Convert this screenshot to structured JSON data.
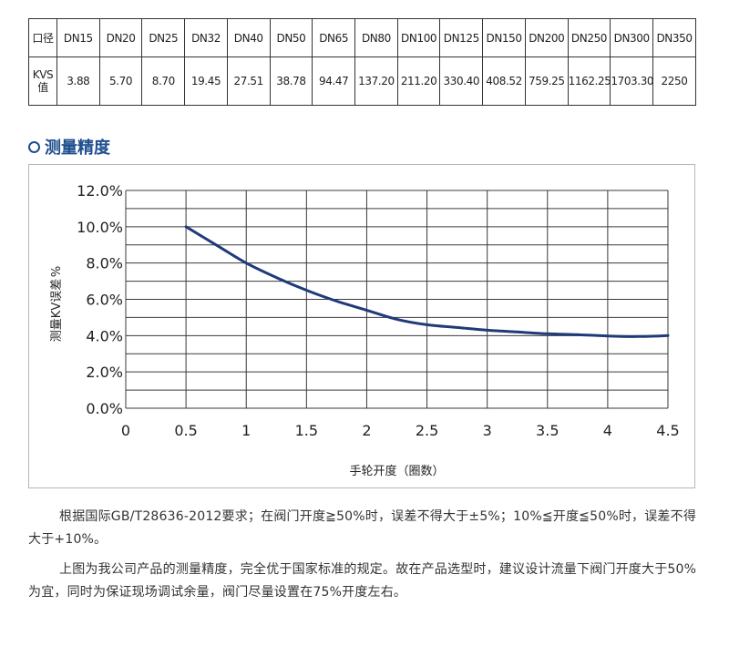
{
  "kvs_table": {
    "header_label": "口径",
    "kvs_label_line1": "KVS",
    "kvs_label_line2": "值",
    "sizes": [
      "DN15",
      "DN20",
      "DN25",
      "DN32",
      "DN40",
      "DN50",
      "DN65",
      "DN80",
      "DN100",
      "DN125",
      "DN150",
      "DN200",
      "DN250",
      "DN300",
      "DN350"
    ],
    "values": [
      "3.88",
      "5.70",
      "8.70",
      "19.45",
      "27.51",
      "38.78",
      "94.47",
      "137.20",
      "211.20",
      "330.40",
      "408.52",
      "759.25",
      "1162.25",
      "1703.30",
      "2250"
    ]
  },
  "section": {
    "title": "测量精度"
  },
  "colors": {
    "accent": "#1f4e8f",
    "curve": "#1f3a7a"
  },
  "chart_data": {
    "type": "line",
    "xlabel": "手轮开度（圈数）",
    "ylabel": "测量KV误差",
    "ylabel_unit": "%",
    "x_ticks": [
      "0",
      "0.5",
      "1",
      "1.5",
      "2",
      "2.5",
      "3",
      "3.5",
      "4",
      "4.5"
    ],
    "y_ticks": [
      "0.0%",
      "2.0%",
      "4.0%",
      "6.0%",
      "8.0%",
      "10.0%",
      "12.0%"
    ],
    "xlim": [
      0,
      4.5
    ],
    "ylim": [
      0,
      12
    ],
    "grid": true,
    "series": [
      {
        "x": [
          0.5,
          0.75,
          1.0,
          1.25,
          1.5,
          1.75,
          2.0,
          2.25,
          2.5,
          2.75,
          3.0,
          3.25,
          3.5,
          3.75,
          4.0,
          4.25,
          4.5
        ],
        "y": [
          10.0,
          9.0,
          8.0,
          7.2,
          6.5,
          5.9,
          5.4,
          4.9,
          4.6,
          4.45,
          4.3,
          4.2,
          4.1,
          4.05,
          3.98,
          3.95,
          4.0
        ]
      }
    ]
  },
  "paragraphs": {
    "p1": "根据国际GB/T28636-2012要求；在阀门开度≧50%时，误差不得大于±5%；10%≦开度≦50%时，误差不得大于+10%。",
    "p2": "上图为我公司产品的测量精度，完全优于国家标准的规定。故在产品选型时，建议设计流量下阀门开度大于50%为宜，同时为保证现场调试余量，阀门尽量设置在75%开度左右。"
  }
}
